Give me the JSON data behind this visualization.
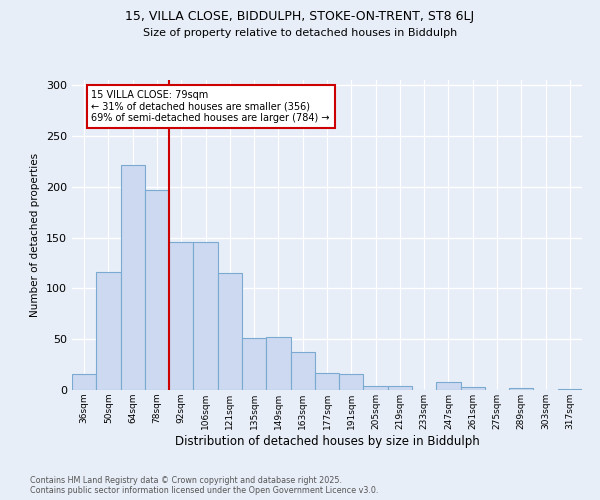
{
  "title_line1": "15, VILLA CLOSE, BIDDULPH, STOKE-ON-TRENT, ST8 6LJ",
  "title_line2": "Size of property relative to detached houses in Biddulph",
  "xlabel": "Distribution of detached houses by size in Biddulph",
  "ylabel": "Number of detached properties",
  "footnote": "Contains HM Land Registry data © Crown copyright and database right 2025.\nContains public sector information licensed under the Open Government Licence v3.0.",
  "categories": [
    "36sqm",
    "50sqm",
    "64sqm",
    "78sqm",
    "92sqm",
    "106sqm",
    "121sqm",
    "135sqm",
    "149sqm",
    "163sqm",
    "177sqm",
    "191sqm",
    "205sqm",
    "219sqm",
    "233sqm",
    "247sqm",
    "261sqm",
    "275sqm",
    "289sqm",
    "303sqm",
    "317sqm"
  ],
  "values": [
    16,
    116,
    221,
    197,
    146,
    146,
    115,
    51,
    52,
    37,
    17,
    16,
    4,
    4,
    0,
    8,
    3,
    0,
    2,
    0,
    1
  ],
  "bar_color": "#ccd9f0",
  "bar_edge_color": "#7aaad0",
  "property_label": "15 VILLA CLOSE: 79sqm",
  "annotation_line2": "← 31% of detached houses are smaller (356)",
  "annotation_line3": "69% of semi-detached houses are larger (784) →",
  "vline_color": "#cc0000",
  "vline_position": 3.5,
  "annotation_box_color": "#cc0000",
  "ylim": [
    0,
    305
  ],
  "background_color": "#e8eef8",
  "plot_bg_color": "#e8eef8",
  "grid_color": "#ffffff",
  "yticks": [
    0,
    50,
    100,
    150,
    200,
    250,
    300
  ]
}
